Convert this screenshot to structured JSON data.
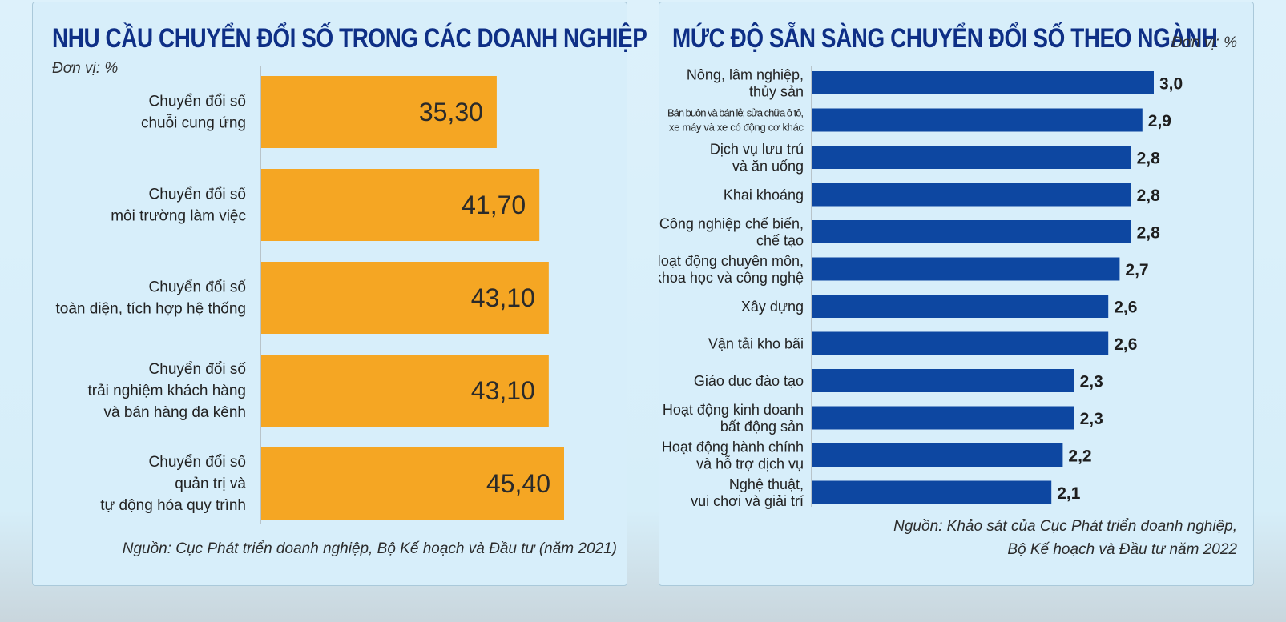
{
  "left_panel": {
    "title": "NHU CẦU CHUYỂN ĐỔI SỐ TRONG CÁC DOANH NGHIỆP",
    "unit": "Đơn vị: %",
    "source": "Nguồn: Cục Phát triển doanh nghiệp, Bộ Kế hoạch và Đầu tư (năm 2021)"
  },
  "right_panel": {
    "title": "MỨC ĐỘ SẴN SÀNG CHUYỂN ĐỔI SỐ THEO NGÀNH",
    "unit": "Đơn vị: %",
    "source_line1": "Nguồn: Khảo sát của Cục Phát triển doanh nghiệp,",
    "source_line2": "Bộ Kế hoạch và Đầu tư năm 2022"
  },
  "chart_data": [
    {
      "type": "bar",
      "orientation": "horizontal",
      "title": "NHU CẦU CHUYỂN ĐỔI SỐ TRONG CÁC DOANH NGHIỆP",
      "unit": "Đơn vị: %",
      "categories": [
        [
          "Chuyển đổi số",
          "chuỗi cung ứng"
        ],
        [
          "Chuyển đổi số",
          "môi trường làm việc"
        ],
        [
          "Chuyển đổi số",
          "toàn diện, tích hợp hệ thống"
        ],
        [
          "Chuyển đổi số",
          "trải nghiệm khách hàng",
          "và bán hàng đa kênh"
        ],
        [
          "Chuyển đổi số",
          "quản trị và",
          "tự động hóa quy trình"
        ]
      ],
      "values": [
        35.3,
        41.7,
        43.1,
        43.1,
        45.4
      ],
      "value_labels": [
        "35,30",
        "41,70",
        "43,10",
        "43,10",
        "45,40"
      ],
      "bar_color": "#f5a623",
      "grid": false
    },
    {
      "type": "bar",
      "orientation": "horizontal",
      "title": "MỨC ĐỘ SẴN SÀNG CHUYỂN ĐỔI SỐ THEO NGÀNH",
      "unit": "Đơn vị: %",
      "categories": [
        [
          "Nông, lâm nghiệp,",
          "thủy sản"
        ],
        [
          "Bán buôn và bán lẻ; sửa chữa ô tô,",
          "xe máy và xe có động cơ khác"
        ],
        [
          "Dịch vụ lưu trú",
          "và ăn uống"
        ],
        [
          "Khai khoáng"
        ],
        [
          "Công nghiệp chế biến,",
          "chế tạo"
        ],
        [
          "Hoạt động chuyên môn,",
          "khoa học và công nghệ"
        ],
        [
          "Xây dựng"
        ],
        [
          "Vận tải kho bãi"
        ],
        [
          "Giáo dục đào tạo"
        ],
        [
          "Hoạt động kinh doanh",
          "bất động sản"
        ],
        [
          "Hoạt động hành chính",
          "và hỗ trợ dịch vụ"
        ],
        [
          "Nghệ thuật,",
          "vui chơi và giải trí"
        ]
      ],
      "values": [
        3.0,
        2.9,
        2.8,
        2.8,
        2.8,
        2.7,
        2.6,
        2.6,
        2.3,
        2.3,
        2.2,
        2.1
      ],
      "value_labels": [
        "3,0",
        "2,9",
        "2,8",
        "2,8",
        "2,8",
        "2,7",
        "2,6",
        "2,6",
        "2,3",
        "2,3",
        "2,2",
        "2,1"
      ],
      "bar_color": "#0d47a1",
      "grid": false
    }
  ]
}
